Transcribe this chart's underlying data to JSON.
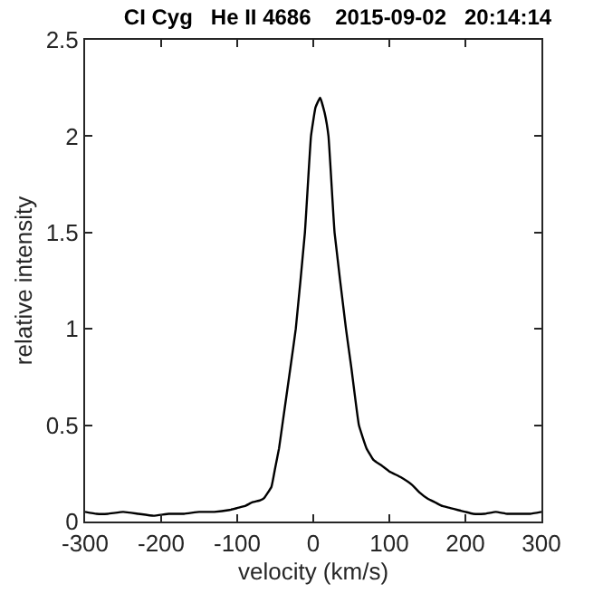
{
  "chart_data": {
    "type": "line",
    "title": "CI Cyg   He II 4686    2015-09-02   20:14:14",
    "xlabel": "velocity (km/s)",
    "ylabel": "relative intensity",
    "x": [
      -300,
      -285,
      -270,
      -250,
      -230,
      -210,
      -190,
      -170,
      -150,
      -130,
      -110,
      -100,
      -90,
      -80,
      -70,
      -65,
      -55,
      -50,
      -45,
      -40,
      -30,
      -23,
      -11,
      -3,
      3,
      9,
      15,
      20,
      28,
      43,
      50,
      60,
      70,
      79,
      90,
      100,
      115,
      130,
      140,
      150,
      160,
      170,
      180,
      190,
      200,
      210,
      225,
      240,
      255,
      270,
      285,
      300
    ],
    "series": [
      {
        "color": "#000000",
        "values": [
          0.05,
          0.04,
          0.04,
          0.05,
          0.04,
          0.03,
          0.04,
          0.04,
          0.05,
          0.05,
          0.06,
          0.07,
          0.08,
          0.1,
          0.11,
          0.12,
          0.18,
          0.28,
          0.38,
          0.52,
          0.8,
          1.0,
          1.5,
          2.0,
          2.15,
          2.2,
          2.12,
          2.0,
          1.5,
          1.0,
          0.8,
          0.5,
          0.38,
          0.32,
          0.29,
          0.26,
          0.23,
          0.19,
          0.15,
          0.12,
          0.1,
          0.08,
          0.07,
          0.06,
          0.05,
          0.04,
          0.04,
          0.05,
          0.04,
          0.04,
          0.04,
          0.05
        ]
      }
    ],
    "xlim": [
      -300,
      300
    ],
    "ylim": [
      0,
      2.5
    ],
    "xticks": [
      -300,
      -200,
      -100,
      0,
      100,
      200,
      300
    ],
    "yticks": [
      0,
      0.5,
      1,
      1.5,
      2,
      2.5
    ],
    "marker": "none",
    "line_style": "solid"
  }
}
